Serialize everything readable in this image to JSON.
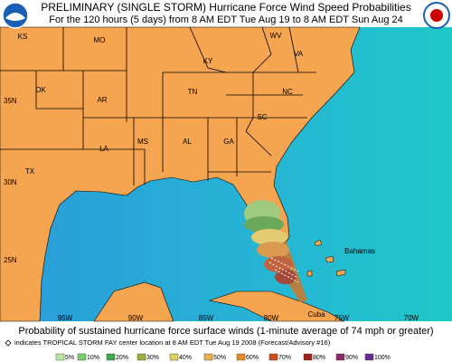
{
  "header": {
    "title": "PRELIMINARY (SINGLE STORM) Hurricane Force Wind Speed Probabilities",
    "subtitle": "For the 120 hours (5 days) from 8 AM EDT Tue Aug 19 to 8 AM EDT Sun Aug 24"
  },
  "map": {
    "state_labels": [
      "KS",
      "MO",
      "KY",
      "WV",
      "VA",
      "OK",
      "AR",
      "TN",
      "NC",
      "SC",
      "MS",
      "AL",
      "GA",
      "LA",
      "TX"
    ],
    "latitude_labels": [
      "35N",
      "30N",
      "25N"
    ],
    "longitude_labels": [
      "95W",
      "90W",
      "85W",
      "80W",
      "75W",
      "70W"
    ],
    "place_labels": [
      "Bahamas",
      "Cuba"
    ]
  },
  "caption": {
    "text": "Probability of sustained hurricane force surface winds (1-minute average of 74 mph or greater)",
    "note": "indicates TROPICAL STORM FAY center location at 8 AM EDT Tue Aug 19 2008 (Forecast/Advisory #16)"
  },
  "legend": {
    "labels": [
      "5%",
      "10%",
      "20%",
      "30%",
      "40%",
      "50%",
      "60%",
      "70%",
      "80%",
      "90%",
      "100%"
    ]
  }
}
